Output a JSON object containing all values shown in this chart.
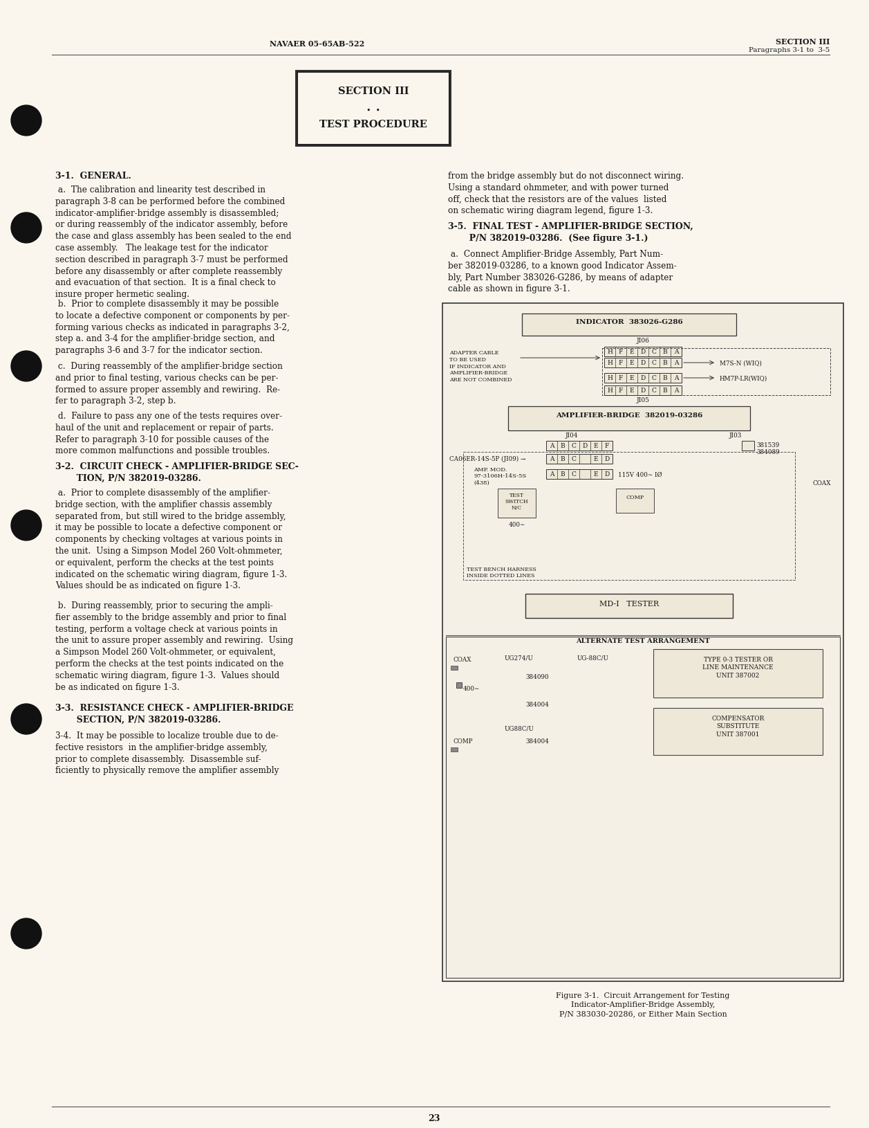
{
  "page_bg": "#faf6ee",
  "text_color": "#1a1a1a",
  "header_left": "NAVAER 05-65AB-522",
  "header_right_line1": "SECTION III",
  "header_right_line2": "Paragraphs 3-1 to  3-5",
  "footer_page": "23"
}
